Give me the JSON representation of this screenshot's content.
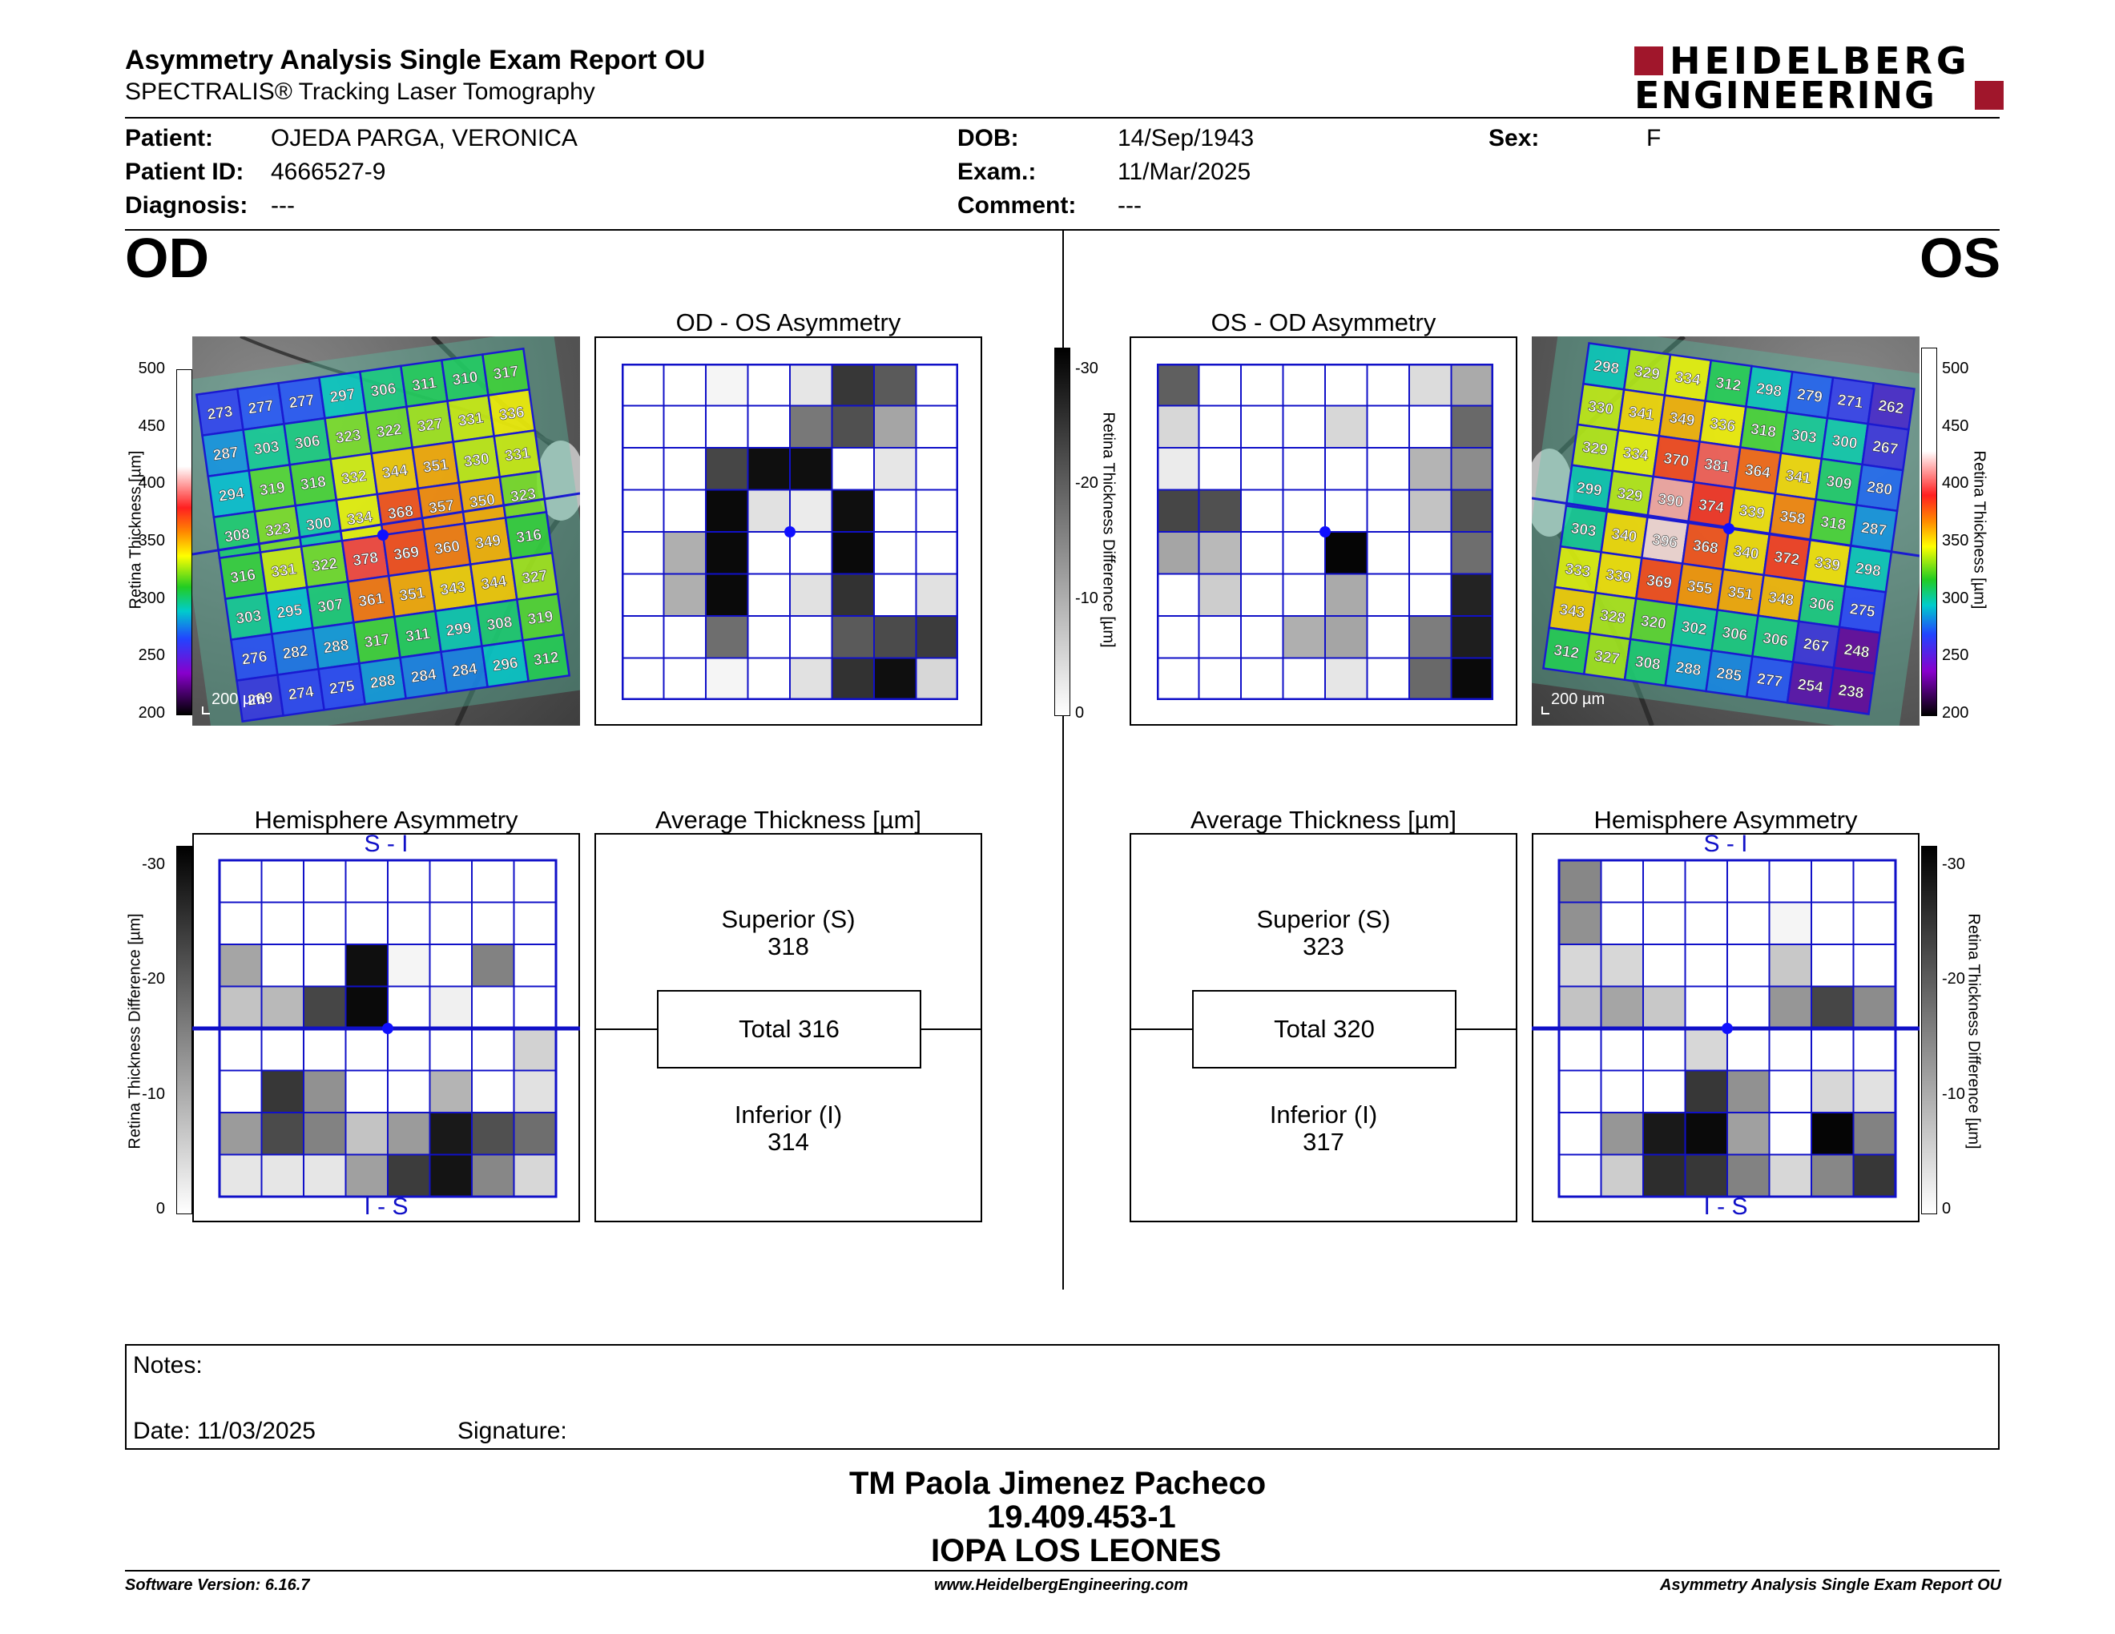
{
  "header": {
    "title": "Asymmetry Analysis Single Exam Report OU",
    "subtitle": "SPECTRALIS® Tracking Laser Tomography",
    "logo_line1": "HEIDELBERG",
    "logo_line2": "ENGINEERING",
    "logo_color": "#a0162b"
  },
  "patient": {
    "patient_label": "Patient:",
    "patient_value": "OJEDA PARGA, VERONICA",
    "id_label": "Patient ID:",
    "id_value": "4666527-9",
    "diagnosis_label": "Diagnosis:",
    "diagnosis_value": "---",
    "dob_label": "DOB:",
    "dob_value": "14/Sep/1943",
    "exam_label": "Exam.:",
    "exam_value": "11/Mar/2025",
    "comment_label": "Comment:",
    "comment_value": "---",
    "sex_label": "Sex:",
    "sex_value": "F"
  },
  "od": {
    "eye_label": "OD",
    "asym_title": "OD - OS Asymmetry",
    "hemi_title": "Hemisphere Asymmetry",
    "hemi_top": "S - I",
    "hemi_bottom": "I - S",
    "avg_title": "Average Thickness [µm]",
    "superior_label": "Superior (S)",
    "superior_value": "318",
    "total_label": "Total 316",
    "inferior_label": "Inferior (I)",
    "inferior_value": "314",
    "scale_bar": "200 µm",
    "thickness": [
      [
        273,
        277,
        277,
        297,
        306,
        311,
        310,
        317
      ],
      [
        287,
        303,
        306,
        323,
        322,
        327,
        331,
        336
      ],
      [
        294,
        319,
        318,
        332,
        344,
        351,
        330,
        331
      ],
      [
        308,
        323,
        300,
        334,
        368,
        357,
        350,
        323
      ],
      [
        316,
        331,
        322,
        378,
        369,
        360,
        349,
        316
      ],
      [
        303,
        295,
        307,
        361,
        351,
        343,
        344,
        327
      ],
      [
        276,
        282,
        288,
        317,
        311,
        299,
        308,
        319
      ],
      [
        269,
        274,
        275,
        288,
        284,
        284,
        296,
        312
      ]
    ],
    "asym_gray": [
      [
        0,
        0,
        10,
        0,
        25,
        200,
        165,
        0
      ],
      [
        0,
        0,
        0,
        0,
        135,
        175,
        90,
        0
      ],
      [
        0,
        0,
        185,
        240,
        240,
        0,
        25,
        0
      ],
      [
        0,
        0,
        245,
        30,
        20,
        240,
        0,
        0
      ],
      [
        0,
        80,
        245,
        0,
        0,
        245,
        0,
        0
      ],
      [
        0,
        80,
        245,
        0,
        30,
        205,
        0,
        30
      ],
      [
        0,
        0,
        145,
        0,
        0,
        165,
        180,
        195
      ],
      [
        0,
        0,
        10,
        0,
        30,
        205,
        240,
        40
      ]
    ],
    "hemi_gray": [
      [
        0,
        0,
        0,
        0,
        0,
        0,
        0,
        0
      ],
      [
        0,
        0,
        0,
        0,
        0,
        0,
        0,
        0
      ],
      [
        90,
        0,
        0,
        240,
        10,
        0,
        125,
        0
      ],
      [
        60,
        70,
        185,
        245,
        0,
        15,
        0,
        0
      ],
      [
        0,
        0,
        0,
        0,
        0,
        0,
        0,
        45
      ],
      [
        0,
        200,
        110,
        0,
        0,
        75,
        0,
        30
      ],
      [
        100,
        180,
        125,
        60,
        100,
        230,
        175,
        145
      ],
      [
        25,
        25,
        25,
        95,
        195,
        235,
        120,
        40
      ]
    ]
  },
  "os": {
    "eye_label": "OS",
    "asym_title": "OS - OD Asymmetry",
    "hemi_title": "Hemisphere Asymmetry",
    "hemi_top": "S - I",
    "hemi_bottom": "I - S",
    "avg_title": "Average Thickness [µm]",
    "superior_label": "Superior (S)",
    "superior_value": "323",
    "total_label": "Total 320",
    "inferior_label": "Inferior (I)",
    "inferior_value": "317",
    "scale_bar": "200 µm",
    "thickness": [
      [
        298,
        329,
        334,
        312,
        298,
        279,
        271,
        262
      ],
      [
        330,
        341,
        349,
        336,
        318,
        303,
        300,
        267
      ],
      [
        329,
        334,
        370,
        381,
        364,
        341,
        309,
        280
      ],
      [
        299,
        329,
        390,
        374,
        339,
        358,
        318,
        287
      ],
      [
        303,
        340,
        396,
        368,
        340,
        372,
        339,
        298
      ],
      [
        333,
        339,
        369,
        355,
        351,
        348,
        306,
        275
      ],
      [
        343,
        328,
        320,
        302,
        306,
        306,
        267,
        248
      ],
      [
        312,
        327,
        308,
        288,
        285,
        277,
        254,
        238
      ]
    ],
    "asym_gray": [
      [
        160,
        0,
        0,
        0,
        0,
        0,
        35,
        85
      ],
      [
        40,
        0,
        0,
        0,
        40,
        0,
        0,
        150
      ],
      [
        20,
        0,
        0,
        0,
        0,
        0,
        75,
        115
      ],
      [
        185,
        175,
        0,
        0,
        0,
        0,
        60,
        170
      ],
      [
        90,
        70,
        0,
        0,
        250,
        0,
        0,
        145
      ],
      [
        0,
        50,
        0,
        0,
        85,
        0,
        0,
        220
      ],
      [
        0,
        0,
        0,
        80,
        90,
        0,
        130,
        225
      ],
      [
        0,
        0,
        0,
        0,
        25,
        0,
        150,
        245
      ]
    ],
    "hemi_gray": [
      [
        120,
        0,
        0,
        0,
        0,
        0,
        0,
        0
      ],
      [
        110,
        0,
        0,
        0,
        0,
        10,
        0,
        0
      ],
      [
        40,
        40,
        0,
        0,
        0,
        55,
        0,
        0
      ],
      [
        60,
        90,
        55,
        0,
        0,
        105,
        185,
        115
      ],
      [
        0,
        0,
        0,
        40,
        0,
        0,
        0,
        0
      ],
      [
        0,
        0,
        0,
        200,
        110,
        0,
        40,
        30
      ],
      [
        0,
        105,
        230,
        245,
        95,
        0,
        250,
        125
      ],
      [
        0,
        50,
        210,
        200,
        125,
        40,
        120,
        200
      ]
    ]
  },
  "colorbar": {
    "thickness_label": "Retina Thickness [µm]",
    "thickness_ticks": [
      "500",
      "450",
      "400",
      "350",
      "300",
      "250",
      "200"
    ],
    "diff_label": "Retina Thickness Difference [µm]",
    "diff_ticks": [
      "-30",
      "-20",
      "-10",
      "0"
    ]
  },
  "notes": {
    "notes_label": "Notes:",
    "date_label": "Date: 11/03/2025",
    "signature_label": "Signature:"
  },
  "signature_block": {
    "name": "TM Paola Jimenez Pacheco",
    "rut": "19.409.453-1",
    "institution": "IOPA LOS LEONES"
  },
  "footer": {
    "software": "Software Version: 6.16.7",
    "website": "www.HeidelbergEngineering.com",
    "report_name": "Asymmetry Analysis Single Exam Report OU"
  }
}
